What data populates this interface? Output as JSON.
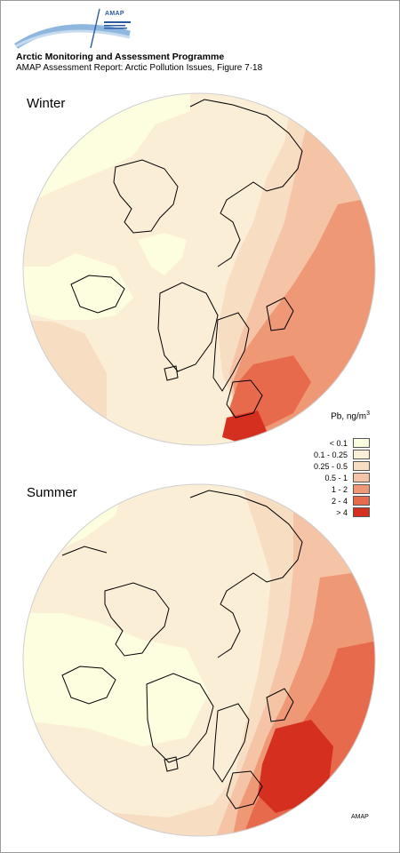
{
  "header": {
    "logo_text": "AMAP",
    "title": "Arctic Monitoring and Assessment Programme",
    "subtitle": "AMAP Assessment Report: Arctic Pollution Issues, Figure 7·18"
  },
  "maps": [
    {
      "label": "Winter",
      "polar_ring_visible": false
    },
    {
      "label": "Summer",
      "polar_ring_visible": false
    }
  ],
  "legend": {
    "title_prefix": "Pb, ng/m",
    "title_sup": "3",
    "classes": [
      {
        "label": "< 0.1",
        "color": "#fdfde0"
      },
      {
        "label": "0.1 - 0.25",
        "color": "#fbeed6"
      },
      {
        "label": "0.25 - 0.5",
        "color": "#f7ddc2"
      },
      {
        "label": "0.5 - 1",
        "color": "#f5c4a7"
      },
      {
        "label": "1 - 2",
        "color": "#ef9876"
      },
      {
        "label": "2 - 4",
        "color": "#e86a4c"
      },
      {
        "label": "> 4",
        "color": "#d5301f"
      }
    ]
  },
  "credit": "AMAP",
  "colors": {
    "coastline": "#000000",
    "frame": "#9a9a9a",
    "logo_arc": "#8fb6de"
  }
}
